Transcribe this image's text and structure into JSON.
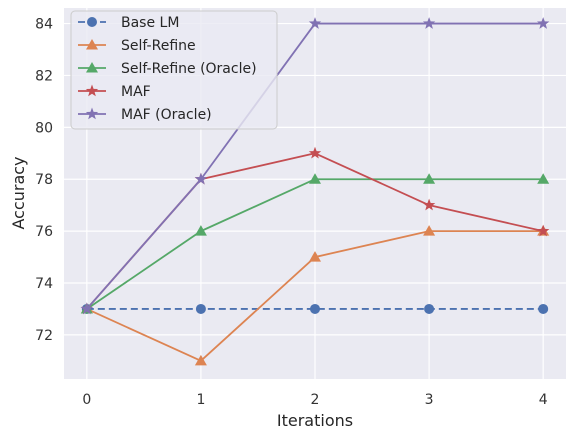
{
  "chart_data": {
    "type": "line",
    "xlabel": "Iterations",
    "ylabel": "Accuracy",
    "x": [
      0,
      1,
      2,
      3,
      4
    ],
    "xlim": [
      -0.2,
      4.2
    ],
    "ylim": [
      70.3,
      84.6
    ],
    "xticks": [
      0,
      1,
      2,
      3,
      4
    ],
    "yticks": [
      72,
      74,
      76,
      78,
      80,
      82,
      84
    ],
    "grid": true,
    "legend_position": "top-left",
    "series": [
      {
        "name": "Base LM",
        "values": [
          73,
          73,
          73,
          73,
          73
        ],
        "color": "#4C72B0",
        "marker": "circle",
        "dash": true
      },
      {
        "name": "Self-Refine",
        "values": [
          73,
          71,
          75,
          76,
          76
        ],
        "color": "#DD8452",
        "marker": "triangle",
        "dash": false
      },
      {
        "name": "Self-Refine (Oracle)",
        "values": [
          73,
          76,
          78,
          78,
          78
        ],
        "color": "#55A868",
        "marker": "triangle",
        "dash": false
      },
      {
        "name": "MAF",
        "values": [
          73,
          78,
          79,
          77,
          76
        ],
        "color": "#C44E52",
        "marker": "star",
        "dash": false
      },
      {
        "name": "MAF (Oracle)",
        "values": [
          73,
          78,
          84,
          84,
          84
        ],
        "color": "#8172B3",
        "marker": "star",
        "dash": false
      }
    ]
  }
}
